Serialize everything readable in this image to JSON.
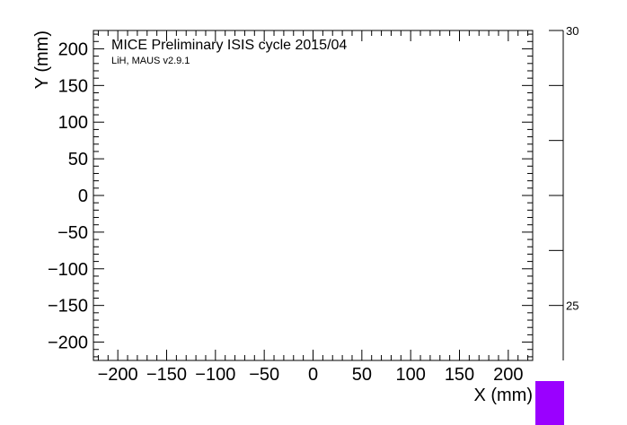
{
  "chart_data": {
    "type": "heatmap",
    "title": "MICE Preliminary ISIS cycle 2015/04",
    "subtitle": "LiH, MAUS v2.9.1",
    "xlabel": "X (mm)",
    "ylabel": "Y (mm)",
    "xlim": [
      -225,
      225
    ],
    "ylim": [
      -225,
      225
    ],
    "x_ticks": [
      -200,
      -150,
      -100,
      -50,
      0,
      50,
      100,
      150,
      200
    ],
    "x_tick_labels": [
      "−200",
      "−150",
      "−100",
      "−50",
      "0",
      "50",
      "100",
      "150",
      "200"
    ],
    "y_ticks": [
      -200,
      -150,
      -100,
      -50,
      0,
      50,
      100,
      150,
      200
    ],
    "y_tick_labels": [
      "−200",
      "−150",
      "−100",
      "−50",
      "0",
      "50",
      "100",
      "150",
      "200"
    ],
    "colorbar": {
      "range": [
        24,
        30
      ],
      "labels": [
        {
          "value": 30,
          "text": "30"
        },
        {
          "value": 25,
          "text": "25"
        }
      ],
      "major_ticks": [
        30,
        29,
        28,
        27,
        26,
        25
      ],
      "swatch_color": "#9a00ff"
    },
    "cells": []
  }
}
